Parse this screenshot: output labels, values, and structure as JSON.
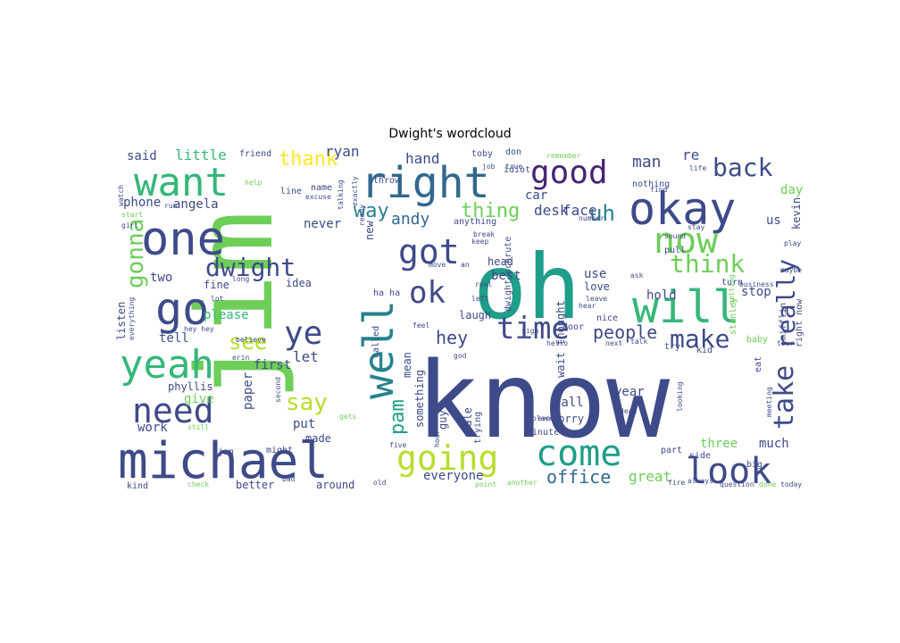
{
  "title": "Dwight's wordcloud",
  "palette": {
    "dark_purple": "#482474",
    "indigo": "#3e4a89",
    "blue": "#31688e",
    "teal_blue": "#26828e",
    "teal": "#1f9e89",
    "green": "#35b779",
    "light_green": "#6ece58",
    "yellow_green": "#b5de2b",
    "yellow": "#fde725",
    "background": "#ffffff"
  },
  "words": [
    {
      "text": "know",
      "color": "#3e4a89"
    },
    {
      "text": "jim",
      "color": "#6ece58"
    },
    {
      "text": "oh",
      "color": "#1f9e89"
    },
    {
      "text": "michael",
      "color": "#3e4a89"
    },
    {
      "text": "okay",
      "color": "#3e4a89"
    },
    {
      "text": "one",
      "color": "#3e4a89"
    },
    {
      "text": "right",
      "color": "#31688e"
    },
    {
      "text": "want",
      "color": "#35b779"
    },
    {
      "text": "go",
      "color": "#3e4a89"
    },
    {
      "text": "yeah",
      "color": "#35b779"
    },
    {
      "text": "will",
      "color": "#35b779"
    },
    {
      "text": "well",
      "color": "#26828e"
    },
    {
      "text": "good",
      "color": "#482474"
    },
    {
      "text": "now",
      "color": "#6ece58"
    },
    {
      "text": "going",
      "color": "#b5de2b"
    },
    {
      "text": "come",
      "color": "#1f9e89"
    },
    {
      "text": "look",
      "color": "#3e4a89"
    },
    {
      "text": "need",
      "color": "#3e4a89"
    },
    {
      "text": "got",
      "color": "#3e4a89"
    },
    {
      "text": "ok",
      "color": "#3e4a89"
    },
    {
      "text": "time",
      "color": "#3e4a89"
    },
    {
      "text": "ye",
      "color": "#3e4a89"
    },
    {
      "text": "back",
      "color": "#3e4a89"
    },
    {
      "text": "really",
      "color": "#3e4a89"
    },
    {
      "text": "think",
      "color": "#6ece58"
    },
    {
      "text": "make",
      "color": "#3e4a89"
    },
    {
      "text": "take",
      "color": "#3e4a89"
    },
    {
      "text": "dwight",
      "color": "#3e4a89"
    },
    {
      "text": "gonna",
      "color": "#6ece58"
    },
    {
      "text": "say",
      "color": "#b5de2b"
    },
    {
      "text": "pam",
      "color": "#1f9e89"
    },
    {
      "text": "see",
      "color": "#b5de2b"
    },
    {
      "text": "thank",
      "color": "#fde725"
    },
    {
      "text": "uh",
      "color": "#26828e"
    },
    {
      "text": "way",
      "color": "#26828e"
    },
    {
      "text": "thing",
      "color": "#6ece58"
    },
    {
      "text": "people",
      "color": "#3e4a89"
    },
    {
      "text": "hey",
      "color": "#3e4a89"
    },
    {
      "text": "desk",
      "color": "#3e4a89"
    },
    {
      "text": "face",
      "color": "#3e4a89"
    },
    {
      "text": "andy",
      "color": "#31688e"
    },
    {
      "text": "office",
      "color": "#31688e"
    },
    {
      "text": "ryan",
      "color": "#3e4a89"
    },
    {
      "text": "hand",
      "color": "#3e4a89"
    },
    {
      "text": "man",
      "color": "#3e4a89"
    },
    {
      "text": "re",
      "color": "#3e4a89"
    },
    {
      "text": "little",
      "color": "#35b779"
    },
    {
      "text": "said",
      "color": "#3e4a89"
    },
    {
      "text": "angela",
      "color": "#3e4a89"
    },
    {
      "text": "phone",
      "color": "#3e4a89"
    },
    {
      "text": "two",
      "color": "#3e4a89"
    },
    {
      "text": "please",
      "color": "#35b779"
    },
    {
      "text": "tell",
      "color": "#3e4a89"
    },
    {
      "text": "let",
      "color": "#3e4a89"
    },
    {
      "text": "first",
      "color": "#3e4a89"
    },
    {
      "text": "phyllis",
      "color": "#3e4a89"
    },
    {
      "text": "give",
      "color": "#6ece58"
    },
    {
      "text": "work",
      "color": "#3e4a89"
    },
    {
      "text": "put",
      "color": "#3e4a89"
    },
    {
      "text": "made",
      "color": "#3e4a89"
    },
    {
      "text": "paper",
      "color": "#3e4a89"
    },
    {
      "text": "everyone",
      "color": "#3e4a89"
    },
    {
      "text": "great",
      "color": "#6ece58"
    },
    {
      "text": "call",
      "color": "#3e4a89"
    },
    {
      "text": "sorry",
      "color": "#3e4a89"
    },
    {
      "text": "year",
      "color": "#3e4a89"
    },
    {
      "text": "three",
      "color": "#6ece58"
    },
    {
      "text": "much",
      "color": "#3e4a89"
    },
    {
      "text": "hold",
      "color": "#3e4a89"
    },
    {
      "text": "use",
      "color": "#3e4a89"
    },
    {
      "text": "love",
      "color": "#3e4a89"
    },
    {
      "text": "stop",
      "color": "#3e4a89"
    },
    {
      "text": "us",
      "color": "#3e4a89"
    },
    {
      "text": "day",
      "color": "#6ece58"
    },
    {
      "text": "kevin",
      "color": "#3e4a89"
    },
    {
      "text": "never",
      "color": "#3e4a89"
    },
    {
      "text": "new",
      "color": "#3e4a89"
    },
    {
      "text": "laugh",
      "color": "#3e4a89"
    },
    {
      "text": "mean",
      "color": "#3e4a89"
    },
    {
      "text": "something",
      "color": "#3e4a89"
    },
    {
      "text": "guy",
      "color": "#3e4a89"
    },
    {
      "text": "car",
      "color": "#3e4a89"
    },
    {
      "text": "best",
      "color": "#3e4a89"
    },
    {
      "text": "head",
      "color": "#3e4a89"
    },
    {
      "text": "listen",
      "color": "#3e4a89"
    },
    {
      "text": "fine",
      "color": "#3e4a89"
    },
    {
      "text": "better",
      "color": "#3e4a89"
    },
    {
      "text": "around",
      "color": "#3e4a89"
    },
    {
      "text": "kind",
      "color": "#3e4a89"
    },
    {
      "text": "dwight schrute",
      "color": "#3e4a89"
    },
    {
      "text": "wait thought",
      "color": "#3e4a89"
    },
    {
      "text": "stanley",
      "color": "#6ece58"
    },
    {
      "text": "nice",
      "color": "#3e4a89"
    },
    {
      "text": "idea",
      "color": "#3e4a89"
    },
    {
      "text": "sale",
      "color": "#3e4a89"
    },
    {
      "text": "trying",
      "color": "#3e4a89"
    },
    {
      "text": "idiot",
      "color": "#3e4a89"
    },
    {
      "text": "door",
      "color": "#3e4a89"
    },
    {
      "text": "anything",
      "color": "#3e4a89"
    },
    {
      "text": "nothing",
      "color": "#3e4a89"
    },
    {
      "text": "toby",
      "color": "#3e4a89"
    },
    {
      "text": "don",
      "color": "#3e4a89"
    },
    {
      "text": "throw",
      "color": "#3e4a89"
    },
    {
      "text": "line",
      "color": "#3e4a89"
    },
    {
      "text": "name",
      "color": "#3e4a89"
    },
    {
      "text": "friend",
      "color": "#3e4a89"
    },
    {
      "text": "watch",
      "color": "#3e4a89"
    },
    {
      "text": "start",
      "color": "#6ece58"
    },
    {
      "text": "girl",
      "color": "#3e4a89"
    },
    {
      "text": "hey hey",
      "color": "#3e4a89"
    },
    {
      "text": "baby",
      "color": "#6ece58"
    },
    {
      "text": "eat",
      "color": "#3e4a89"
    },
    {
      "text": "kid",
      "color": "#3e4a89"
    },
    {
      "text": "try",
      "color": "#3e4a89"
    },
    {
      "text": "turn",
      "color": "#3e4a89"
    },
    {
      "text": "play",
      "color": "#3e4a89"
    },
    {
      "text": "maybe",
      "color": "#3e4a89"
    },
    {
      "text": "every",
      "color": "#3e4a89"
    },
    {
      "text": "fire",
      "color": "#3e4a89"
    },
    {
      "text": "always",
      "color": "#3e4a89"
    },
    {
      "text": "question",
      "color": "#3e4a89"
    },
    {
      "text": "done",
      "color": "#6ece58"
    },
    {
      "text": "today",
      "color": "#3e4a89"
    },
    {
      "text": "big",
      "color": "#3e4a89"
    },
    {
      "text": "side",
      "color": "#3e4a89"
    },
    {
      "text": "part",
      "color": "#3e4a89"
    },
    {
      "text": "dead",
      "color": "#3e4a89"
    },
    {
      "text": "looking",
      "color": "#3e4a89"
    },
    {
      "text": "minute",
      "color": "#3e4a89"
    },
    {
      "text": "five",
      "color": "#3e4a89"
    },
    {
      "text": "might",
      "color": "#3e4a89"
    },
    {
      "text": "jan",
      "color": "#3e4a89"
    },
    {
      "text": "second",
      "color": "#3e4a89"
    },
    {
      "text": "real",
      "color": "#3e4a89"
    },
    {
      "text": "keep",
      "color": "#3e4a89"
    },
    {
      "text": "left",
      "color": "#3e4a89"
    },
    {
      "text": "feel",
      "color": "#3e4a89"
    },
    {
      "text": "god",
      "color": "#3e4a89"
    },
    {
      "text": "ha ha",
      "color": "#3e4a89"
    },
    {
      "text": "called",
      "color": "#3e4a89"
    },
    {
      "text": "mifflin",
      "color": "#3e4a89"
    },
    {
      "text": "right now",
      "color": "#3e4a89"
    },
    {
      "text": "business",
      "color": "#3e4a89"
    },
    {
      "text": "getting",
      "color": "#6ece58"
    },
    {
      "text": "pull",
      "color": "#3e4a89"
    },
    {
      "text": "sound",
      "color": "#3e4a89"
    },
    {
      "text": "stay",
      "color": "#3e4a89"
    },
    {
      "text": "number",
      "color": "#3e4a89"
    },
    {
      "text": "leave",
      "color": "#3e4a89"
    },
    {
      "text": "ask",
      "color": "#3e4a89"
    },
    {
      "text": "talking",
      "color": "#3e4a89"
    },
    {
      "text": "exactly",
      "color": "#3e4a89"
    },
    {
      "text": "remember",
      "color": "#6ece58"
    },
    {
      "text": "hear",
      "color": "#3e4a89"
    },
    {
      "text": "everything",
      "color": "#3e4a89"
    },
    {
      "text": "believe",
      "color": "#3e4a89"
    },
    {
      "text": "still",
      "color": "#6ece58"
    },
    {
      "text": "job",
      "color": "#3e4a89"
    },
    {
      "text": "true",
      "color": "#3e4a89"
    },
    {
      "text": "place",
      "color": "#3e4a89"
    },
    {
      "text": "another",
      "color": "#6ece58"
    },
    {
      "text": "point",
      "color": "#6ece58"
    },
    {
      "text": "tour",
      "color": "#3e4a89"
    },
    {
      "text": "next",
      "color": "#3e4a89"
    },
    {
      "text": "talk",
      "color": "#3e4a89"
    },
    {
      "text": "meeting",
      "color": "#3e4a89"
    },
    {
      "text": "life",
      "color": "#3e4a89"
    },
    {
      "text": "help",
      "color": "#6ece58"
    },
    {
      "text": "run",
      "color": "#3e4a89"
    },
    {
      "text": "break",
      "color": "#3e4a89"
    },
    {
      "text": "excuse",
      "color": "#3e4a89"
    },
    {
      "text": "old",
      "color": "#3e4a89"
    },
    {
      "text": "bad",
      "color": "#3e4a89"
    },
    {
      "text": "check",
      "color": "#6ece58"
    },
    {
      "text": "erin",
      "color": "#3e4a89"
    },
    {
      "text": "lot",
      "color": "#3e4a89"
    },
    {
      "text": "long",
      "color": "#3e4a89"
    },
    {
      "text": "move",
      "color": "#3e4a89"
    },
    {
      "text": "an",
      "color": "#3e4a89"
    },
    {
      "text": "hello",
      "color": "#3e4a89"
    },
    {
      "text": "find",
      "color": "#3e4a89"
    },
    {
      "text": "hour",
      "color": "#3e4a89"
    },
    {
      "text": "ready",
      "color": "#3e4a89"
    },
    {
      "text": "gets",
      "color": "#6ece58"
    },
    {
      "text": "sigh",
      "color": "#3e4a89"
    }
  ]
}
